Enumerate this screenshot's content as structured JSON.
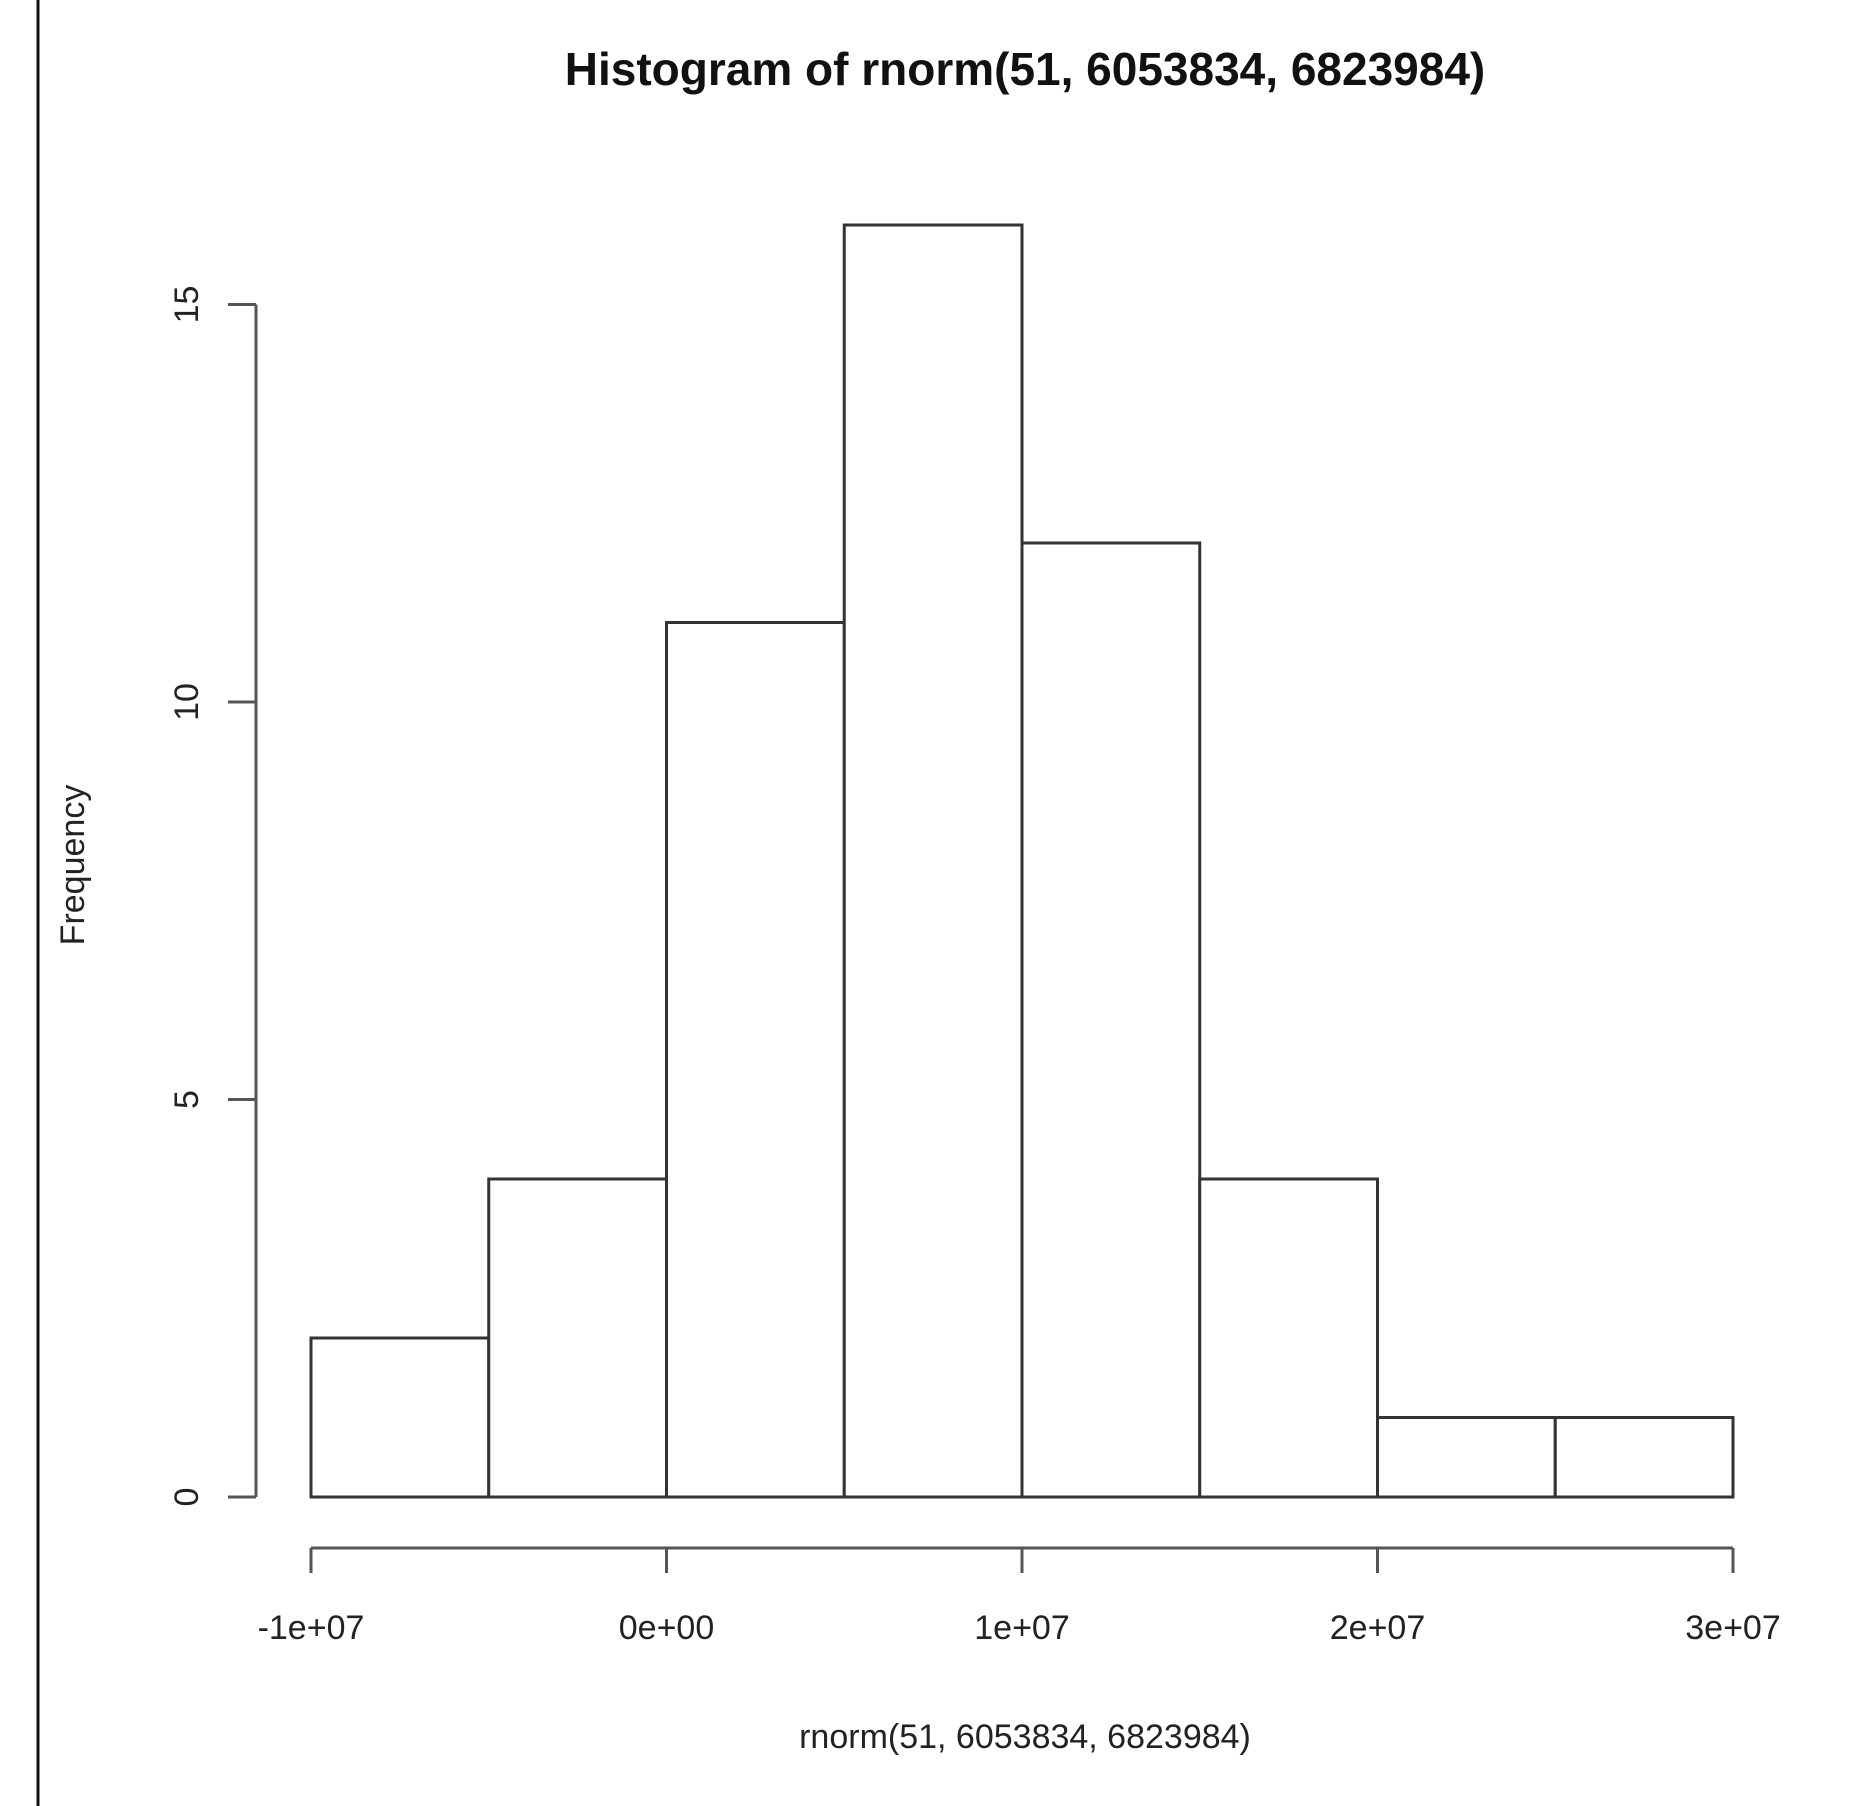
{
  "chart_data": {
    "type": "bar",
    "title": "Histogram of rnorm(51, 6053834, 6823984)",
    "xlabel": "rnorm(51, 6053834, 6823984)",
    "ylabel": "Frequency",
    "bins": [
      {
        "x0": -10000000,
        "x1": -5000000,
        "count": 2
      },
      {
        "x0": -5000000,
        "x1": 0,
        "count": 4
      },
      {
        "x0": 0,
        "x1": 5000000,
        "count": 11
      },
      {
        "x0": 5000000,
        "x1": 10000000,
        "count": 16
      },
      {
        "x0": 10000000,
        "x1": 15000000,
        "count": 12
      },
      {
        "x0": 15000000,
        "x1": 20000000,
        "count": 4
      },
      {
        "x0": 20000000,
        "x1": 25000000,
        "count": 1
      },
      {
        "x0": 25000000,
        "x1": 30000000,
        "count": 1
      }
    ],
    "xlim": [
      -10000000,
      30000000
    ],
    "ylim": [
      0,
      16
    ],
    "x_ticks": [
      {
        "value": -10000000,
        "label": "-1e+07"
      },
      {
        "value": 0,
        "label": "0e+00"
      },
      {
        "value": 10000000,
        "label": "1e+07"
      },
      {
        "value": 20000000,
        "label": "2e+07"
      },
      {
        "value": 30000000,
        "label": "3e+07"
      }
    ],
    "y_ticks": [
      {
        "value": 0,
        "label": "0"
      },
      {
        "value": 5,
        "label": "5"
      },
      {
        "value": 10,
        "label": "10"
      },
      {
        "value": 15,
        "label": "15"
      }
    ],
    "grid": false,
    "legend": "none",
    "colors": {
      "bar_fill": "#ffffff",
      "bar_stroke": "#333333",
      "axis": "#555555"
    }
  }
}
